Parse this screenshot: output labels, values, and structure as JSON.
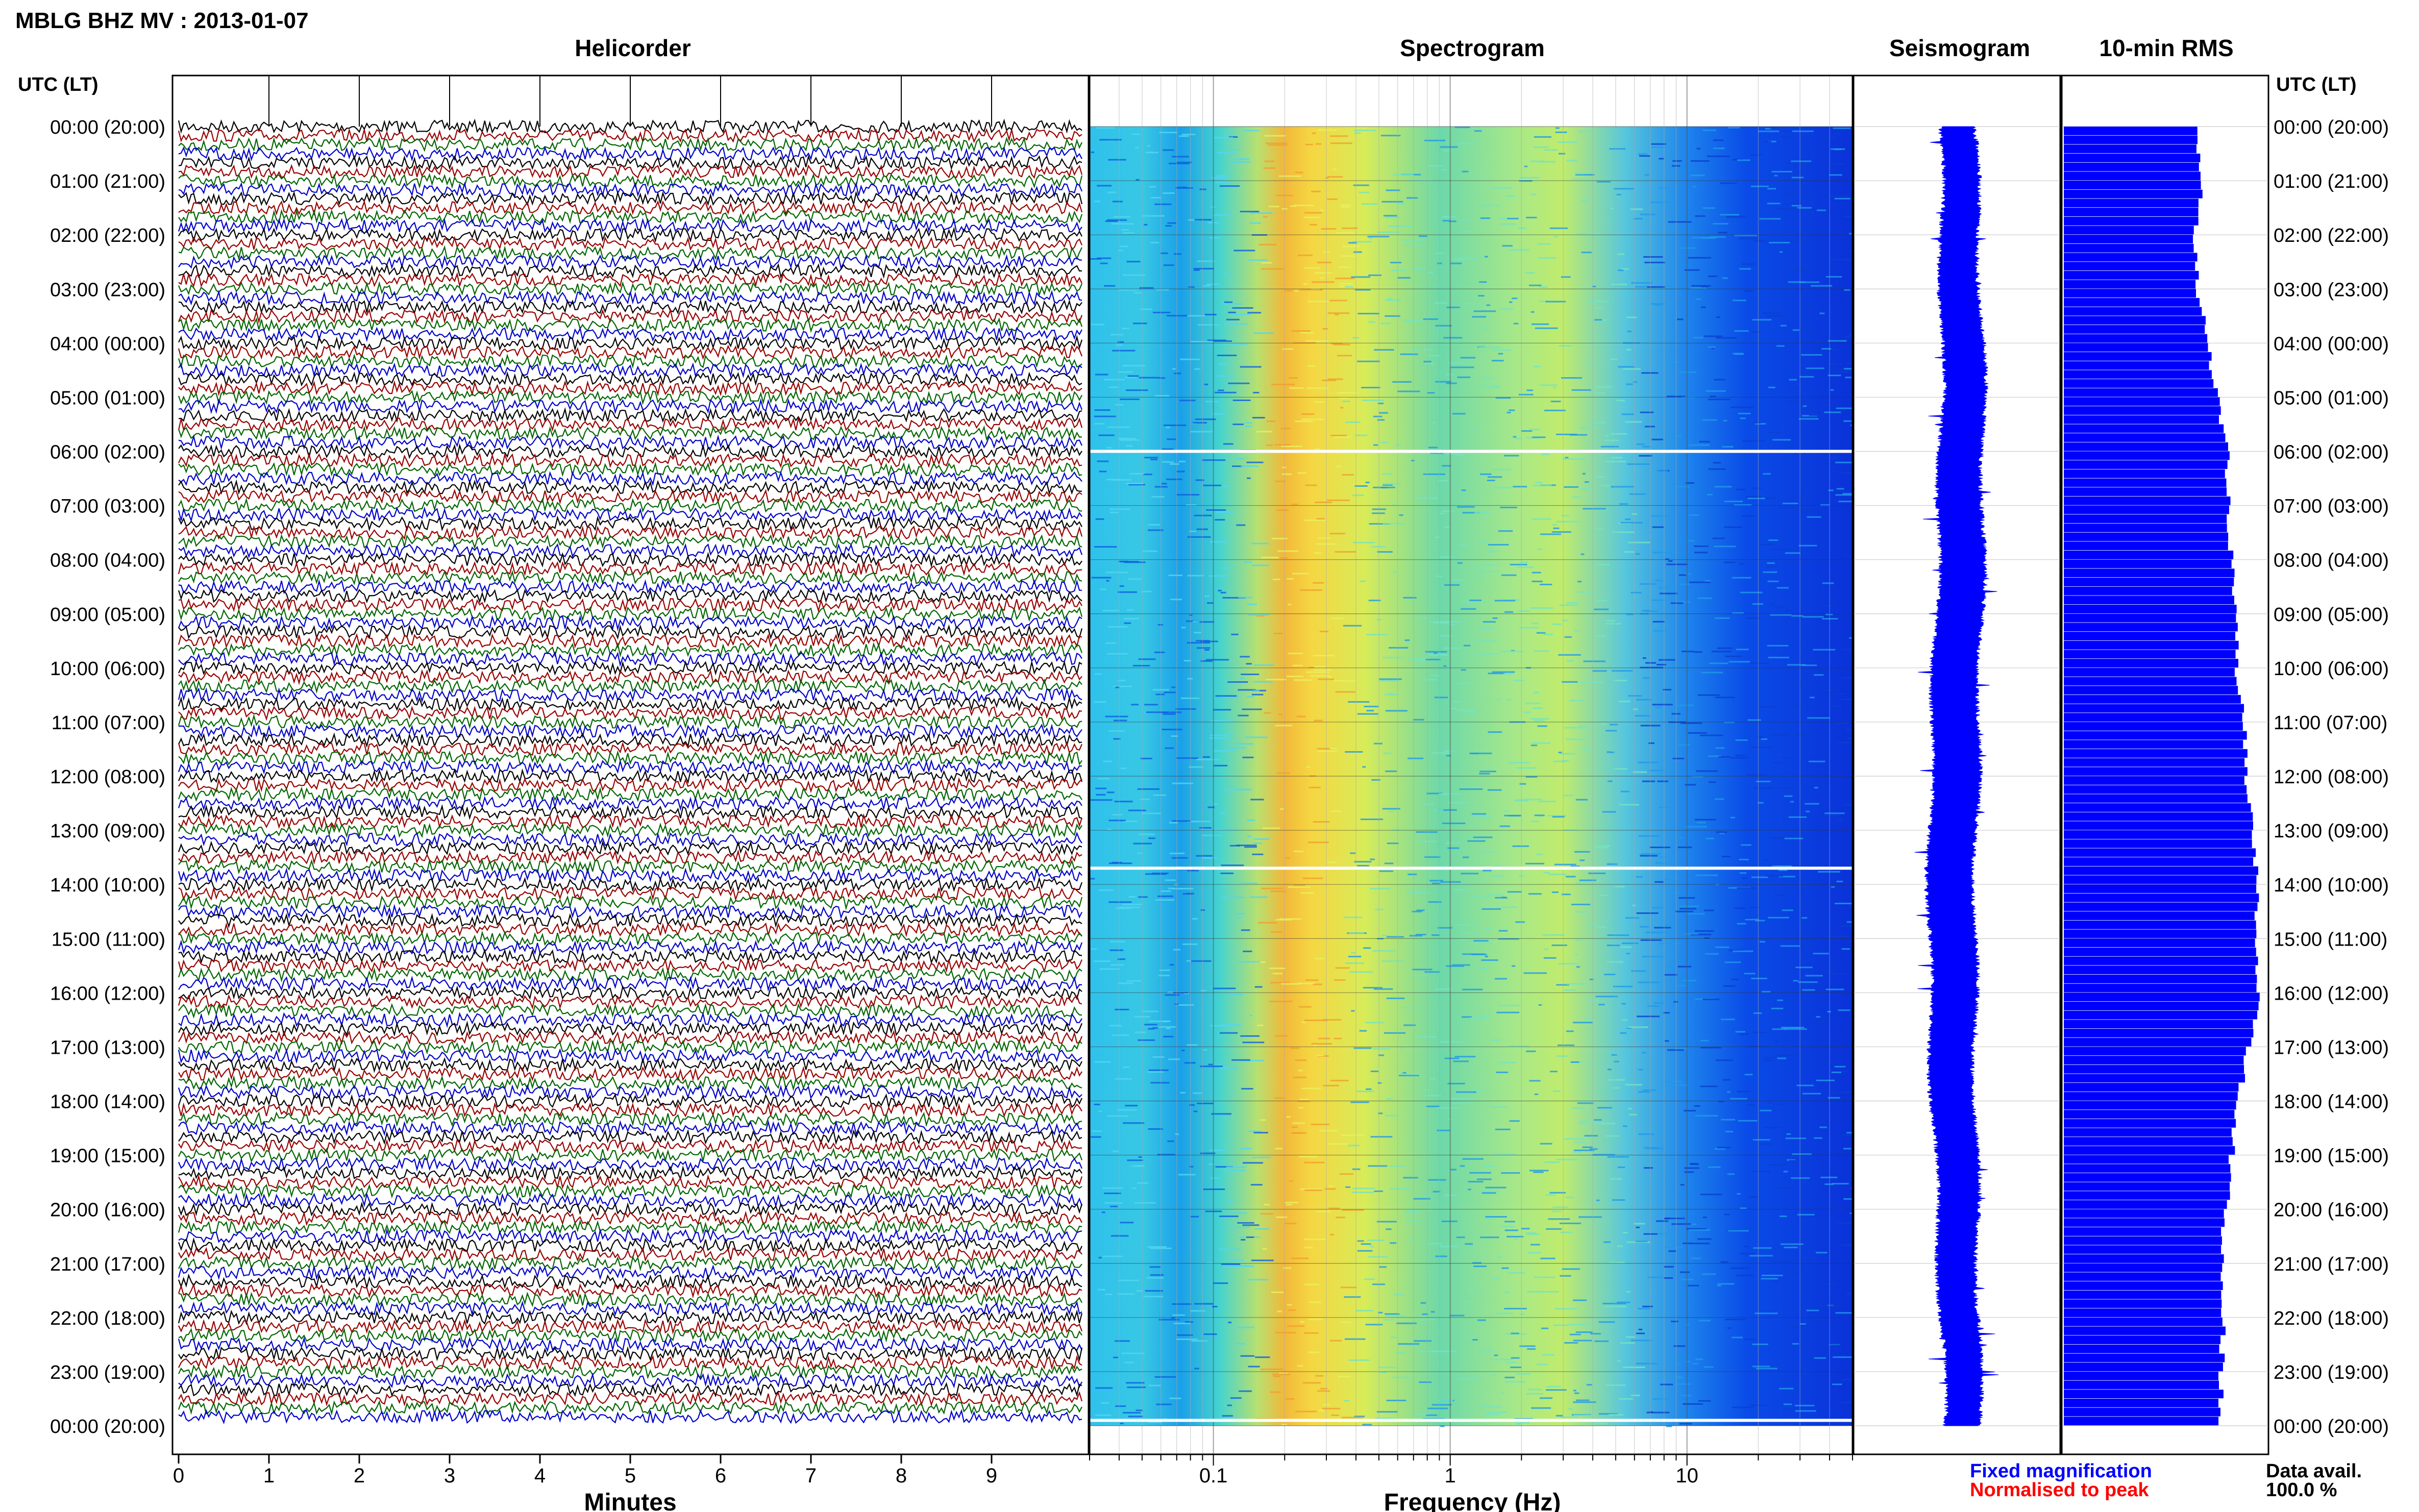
{
  "title": "MBLG BHZ MV : 2013-01-07",
  "panel_titles": {
    "helicorder": "Helicorder",
    "spectrogram": "Spectrogram",
    "seismogram": "Seismogram",
    "rms": "10-min RMS"
  },
  "axis_labels": {
    "left_header": "UTC (LT)",
    "right_header": "UTC (LT)",
    "helicorder_x": "Minutes",
    "spectrogram_x": "Frequency (Hz)"
  },
  "legend": {
    "fixed": "Fixed magnification",
    "normalised": "Normalised to peak"
  },
  "data_avail": {
    "label": "Data avail.",
    "value": "100.0 %"
  },
  "colors": {
    "helicorder_traces": [
      "#000000",
      "#990000",
      "#006600",
      "#0000cc"
    ],
    "legend_fixed": "#0000ff",
    "legend_normalised": "#ff0000",
    "rms_fill": "#0000ff",
    "seismogram_fill": "#0000ff",
    "gridline": "#999999"
  },
  "chart_data": [
    {
      "type": "helicorder",
      "title": "Helicorder",
      "xlabel": "Minutes",
      "x_ticks": [
        "0",
        "1",
        "2",
        "3",
        "4",
        "5",
        "6",
        "7",
        "8",
        "9"
      ],
      "xlim": [
        0,
        10
      ],
      "row_minutes": 10,
      "rows": 144,
      "time_labels": [
        "00:00 (20:00)",
        "01:00 (21:00)",
        "02:00 (22:00)",
        "03:00 (23:00)",
        "04:00 (00:00)",
        "05:00 (01:00)",
        "06:00 (02:00)",
        "07:00 (03:00)",
        "08:00 (04:00)",
        "09:00 (05:00)",
        "10:00 (06:00)",
        "11:00 (07:00)",
        "12:00 (08:00)",
        "13:00 (09:00)",
        "14:00 (10:00)",
        "15:00 (11:00)",
        "16:00 (12:00)",
        "17:00 (13:00)",
        "18:00 (14:00)",
        "19:00 (15:00)",
        "20:00 (16:00)",
        "21:00 (17:00)",
        "22:00 (18:00)",
        "23:00 (19:00)",
        "00:00 (20:00)"
      ]
    },
    {
      "type": "heatmap",
      "title": "Spectrogram",
      "xlabel": "Frequency (Hz)",
      "x_scale": "log",
      "xlim": [
        0.03,
        50
      ],
      "x_ticks": [
        "0.1",
        "1",
        "10"
      ],
      "peak_band_hz": [
        0.2,
        0.3
      ],
      "high_energy_band_hz": [
        1,
        5
      ],
      "data_gaps_utc_hours": [
        6.0,
        13.7,
        23.9
      ]
    },
    {
      "type": "area",
      "title": "Seismogram"
    },
    {
      "type": "bar",
      "orientation": "horizontal",
      "title": "10-min RMS",
      "bins": 144,
      "bin_minutes": 10,
      "hourly_relative_rms": [
        0.66,
        0.68,
        0.64,
        0.67,
        0.72,
        0.76,
        0.81,
        0.82,
        0.83,
        0.85,
        0.86,
        0.89,
        0.91,
        0.93,
        0.96,
        0.95,
        0.97,
        0.91,
        0.86,
        0.83,
        0.8,
        0.78,
        0.79,
        0.78,
        0.78
      ]
    }
  ]
}
